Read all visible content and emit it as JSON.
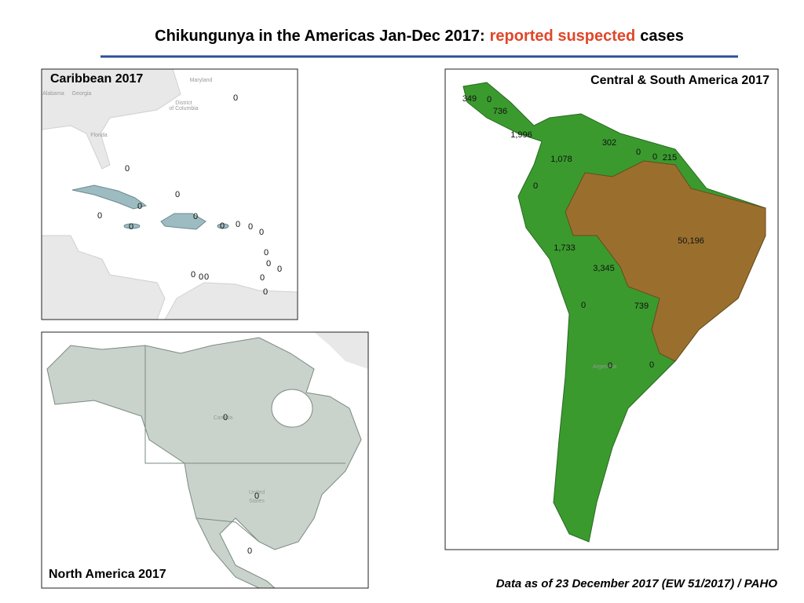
{
  "title": {
    "main": "Chikungunya in the Americas Jan-Dec 2017:",
    "highlight": "reported suspected",
    "end": "cases"
  },
  "panels": [
    {
      "title": "Caribbean 2017",
      "place_labels": [
        "Maryland",
        "Alabama",
        "Georgia",
        "District",
        "of Columbia",
        "Florida"
      ],
      "case_labels": [
        "0",
        "0",
        "0",
        "0",
        "0",
        "0",
        "0",
        "0",
        "0",
        "0",
        "0",
        "0",
        "0",
        "0",
        "0",
        "0",
        "0",
        "0",
        "0"
      ]
    },
    {
      "title": "North America 2017",
      "place_labels": [
        "Canada",
        "United",
        "States"
      ],
      "case_labels": [
        "0",
        "0",
        "0"
      ]
    },
    {
      "title": "Central & South America  2017",
      "place_labels": [
        "Argentina"
      ],
      "case_labels": [
        "349",
        "0",
        "736",
        "1,996",
        "302",
        "0",
        "0",
        "215",
        "1,078",
        "0",
        "50,196",
        "1,733",
        "3,345",
        "0",
        "739",
        "0",
        "0"
      ]
    }
  ],
  "footer": "Data as of 23 December 2017 (EW 51/2017) / PAHO"
}
